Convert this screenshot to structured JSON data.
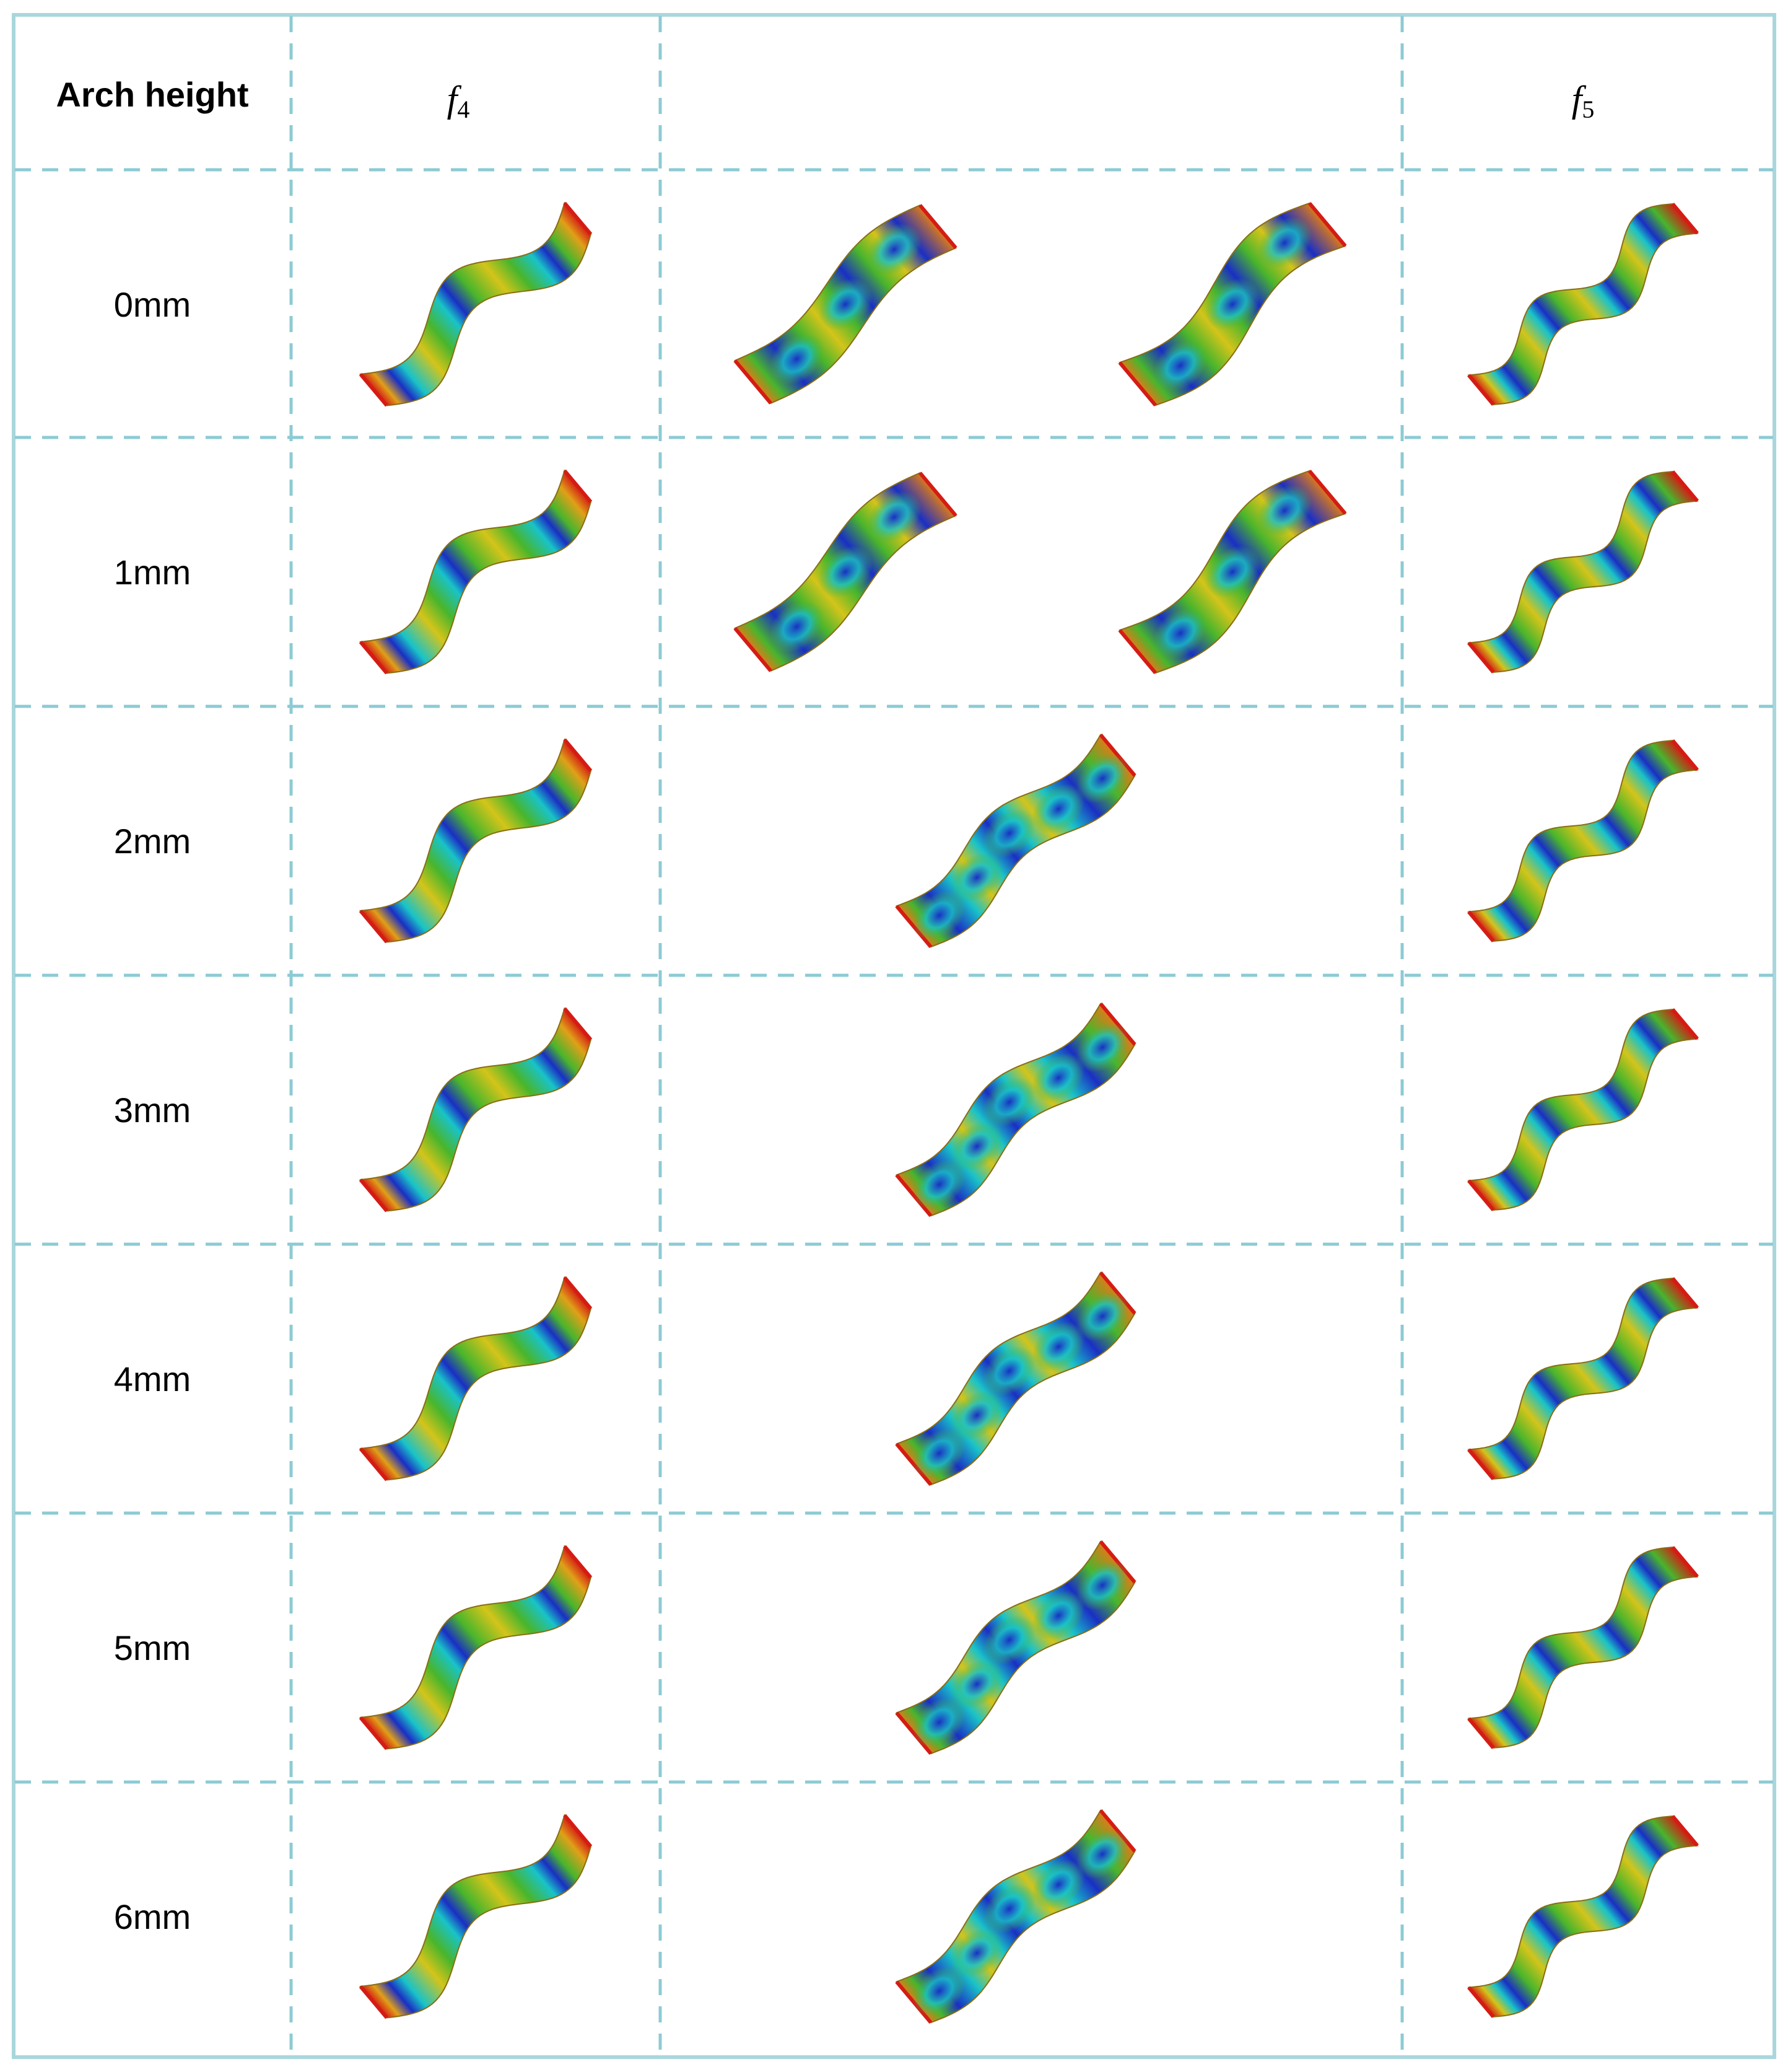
{
  "table": {
    "header": {
      "arch_height_label": "Arch height",
      "col_f4": {
        "symbol": "f",
        "subscript": "4"
      },
      "col_middle": "",
      "col_f5": {
        "symbol": "f",
        "subscript": "5"
      }
    },
    "rows": [
      {
        "label": "0mm",
        "middle_modes": 2
      },
      {
        "label": "1mm",
        "middle_modes": 2
      },
      {
        "label": "2mm",
        "middle_modes": 1
      },
      {
        "label": "3mm",
        "middle_modes": 1
      },
      {
        "label": "4mm",
        "middle_modes": 1
      },
      {
        "label": "5mm",
        "middle_modes": 1
      },
      {
        "label": "6mm",
        "middle_modes": 1
      }
    ]
  },
  "colors": {
    "grid_border": "#a9d6dc",
    "grid_dash": "#8ccbd4",
    "mode_blue": "#1a2fc4",
    "mode_cyan": "#19c3c8",
    "mode_green": "#49b52c",
    "mode_yellow": "#d4c41a",
    "mode_orange": "#e07a18",
    "mode_red": "#d41c14"
  },
  "icons": {
    "mode_shape": "deformed-strip-contour"
  }
}
